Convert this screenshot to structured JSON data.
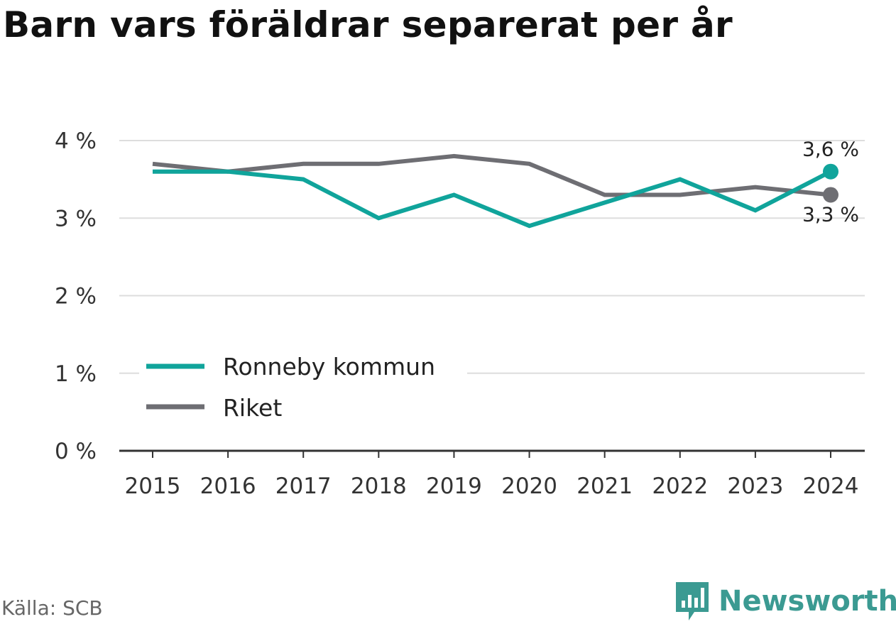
{
  "title": "Barn vars föräldrar separerat per år",
  "source": "Källa: SCB",
  "brand": {
    "name": "Newsworthy",
    "logo_icon": "chart-bars-icon",
    "color": "#3b9a92"
  },
  "chart_data": {
    "type": "line",
    "x": [
      "2015",
      "2016",
      "2017",
      "2018",
      "2019",
      "2020",
      "2021",
      "2022",
      "2023",
      "2024"
    ],
    "series": [
      {
        "name": "Ronneby kommun",
        "color": "#10a49b",
        "values": [
          3.6,
          3.6,
          3.5,
          3.0,
          3.3,
          2.9,
          3.2,
          3.5,
          3.1,
          3.6
        ],
        "end_label": "3,6 %"
      },
      {
        "name": "Riket",
        "color": "#6e6e73",
        "values": [
          3.7,
          3.6,
          3.7,
          3.7,
          3.8,
          3.7,
          3.3,
          3.3,
          3.4,
          3.3
        ],
        "end_label": "3,3 %"
      }
    ],
    "yticks": [
      {
        "value": 0,
        "label": "0 %"
      },
      {
        "value": 1,
        "label": "1 %"
      },
      {
        "value": 2,
        "label": "2 %"
      },
      {
        "value": 3,
        "label": "3 %"
      },
      {
        "value": 4,
        "label": "4 %"
      }
    ],
    "ylim": [
      0,
      4
    ],
    "grid": true,
    "legend_position": "bottom-left"
  }
}
